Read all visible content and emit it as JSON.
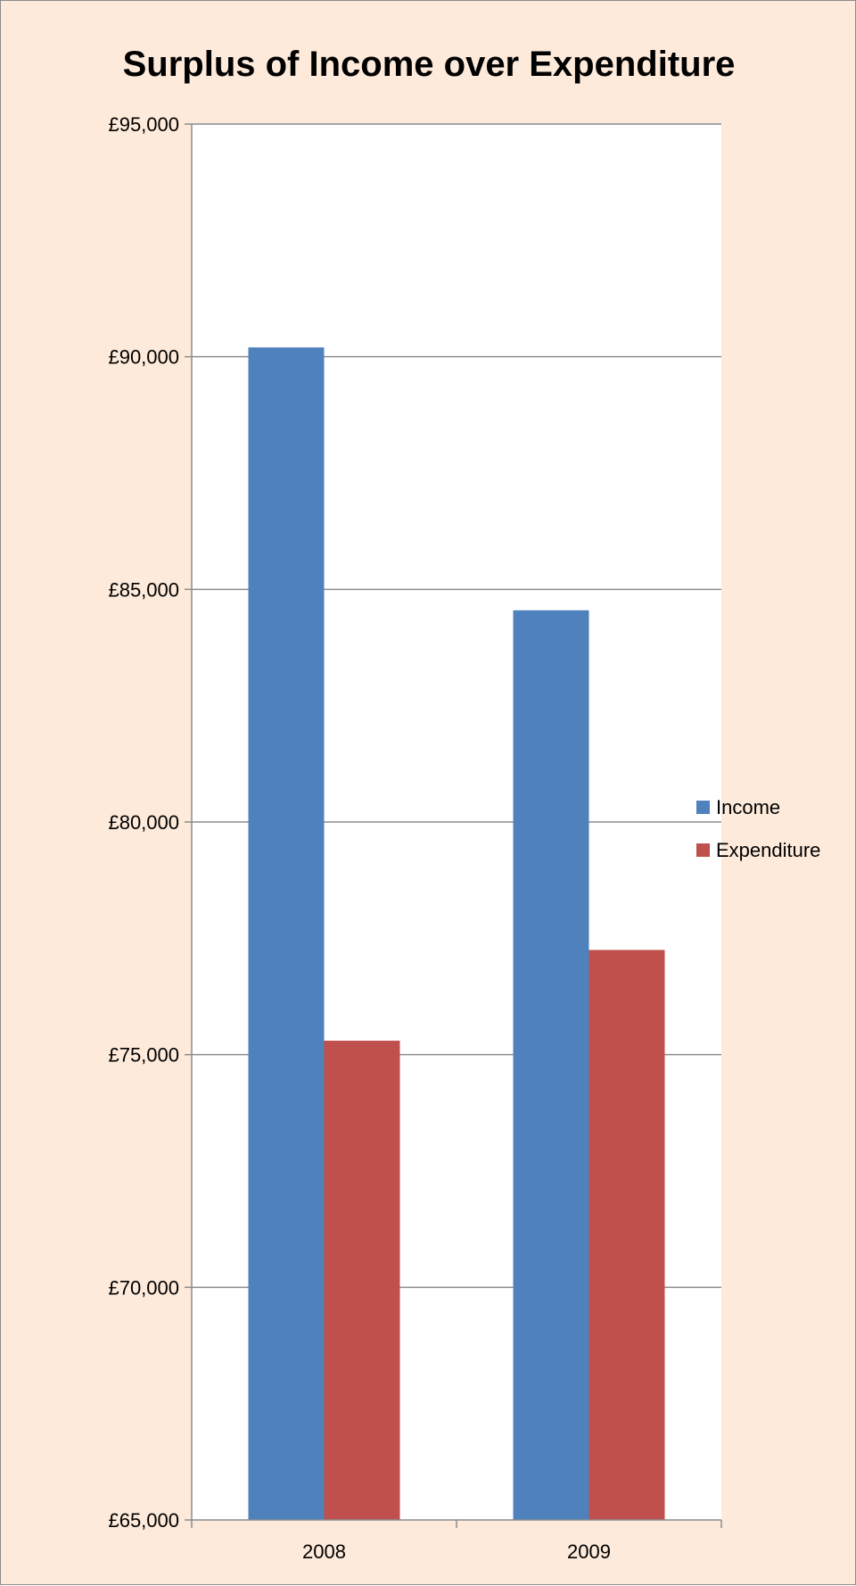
{
  "chart_data": {
    "type": "bar",
    "title": "Surplus of Income over Expenditure",
    "xlabel": "",
    "ylabel": "",
    "categories": [
      "2008",
      "2009"
    ],
    "series": [
      {
        "name": "Income",
        "values": [
          90200,
          84550
        ],
        "color": "#4f81bd"
      },
      {
        "name": "Expenditure",
        "values": [
          75300,
          77250
        ],
        "color": "#c0504d"
      }
    ],
    "ylim": [
      65000,
      95000
    ],
    "yticks": [
      65000,
      70000,
      75000,
      80000,
      85000,
      90000,
      95000
    ],
    "ytick_labels": [
      "£65,000",
      "£70,000",
      "£75,000",
      "£80,000",
      "£85,000",
      "£90,000",
      "£95,000"
    ],
    "grid": true,
    "legend": "right"
  }
}
